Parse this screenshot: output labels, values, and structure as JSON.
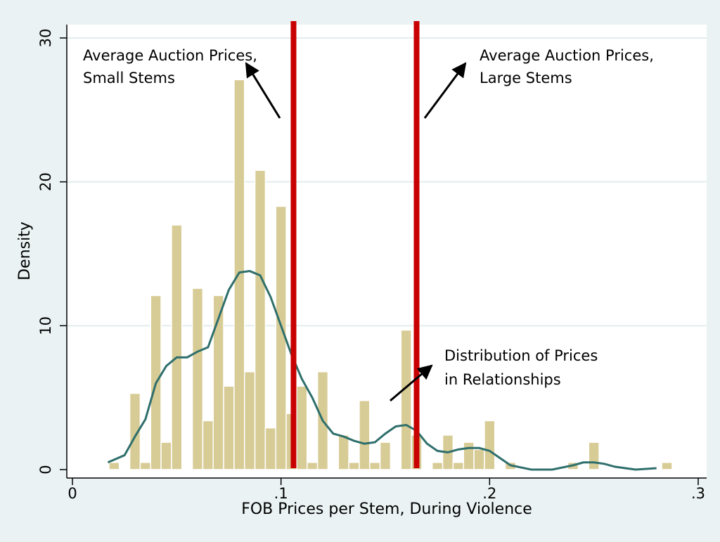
{
  "chart_data": {
    "type": "histogram",
    "xlabel": "FOB Prices per Stem, During Violence",
    "ylabel": "Density",
    "bins": [
      0.0175,
      0.0225,
      0.0275,
      0.0325,
      0.0375,
      0.0425,
      0.0475,
      0.0525,
      0.0575,
      0.0625,
      0.0675,
      0.0725,
      0.0775,
      0.0825,
      0.0875,
      0.0925,
      0.0975,
      0.1025,
      0.1075,
      0.1125,
      0.1175,
      0.1225,
      0.1275,
      0.1325,
      0.1375,
      0.1425,
      0.1475,
      0.1525,
      0.1575,
      0.1625,
      0.1675,
      0.1725,
      0.1775,
      0.1825,
      0.1875,
      0.1925,
      0.1975,
      0.2025,
      0.2075,
      0.2125,
      0.2175,
      0.2225,
      0.2275,
      0.2325,
      0.2375,
      0.2425,
      0.2475,
      0.2525,
      0.2575,
      0.2625,
      0.2675,
      0.2725,
      0.2775,
      0.2825,
      0.2875
    ],
    "values": [
      0.5,
      0,
      5.3,
      0.5,
      12.1,
      1.9,
      17,
      0,
      12.6,
      3.4,
      12.1,
      5.8,
      27.1,
      6.8,
      20.8,
      2.9,
      18.3,
      3.9,
      5.8,
      0.5,
      6.8,
      0,
      2.4,
      0.5,
      4.8,
      0.5,
      1.9,
      0,
      9.7,
      2.4,
      0,
      0.5,
      2.4,
      0.5,
      1.9,
      1.4,
      3.4,
      0,
      0.5,
      0,
      0,
      0,
      0,
      0,
      0.5,
      0,
      1.9,
      0,
      0,
      0,
      0,
      0,
      0,
      0.5
    ],
    "color": "#d8cc96",
    "density": {
      "color": "#2f6f6c",
      "x": [
        0.017,
        0.025,
        0.03,
        0.035,
        0.04,
        0.045,
        0.05,
        0.055,
        0.06,
        0.065,
        0.07,
        0.075,
        0.08,
        0.085,
        0.09,
        0.095,
        0.1,
        0.105,
        0.11,
        0.115,
        0.12,
        0.125,
        0.13,
        0.135,
        0.14,
        0.145,
        0.15,
        0.155,
        0.16,
        0.165,
        0.17,
        0.175,
        0.18,
        0.185,
        0.19,
        0.195,
        0.2,
        0.205,
        0.21,
        0.22,
        0.23,
        0.24,
        0.245,
        0.25,
        0.255,
        0.26,
        0.27,
        0.28
      ],
      "values": [
        0.5,
        1.0,
        2.3,
        3.5,
        6,
        7.2,
        7.8,
        7.8,
        8.2,
        8.5,
        10.5,
        12.5,
        13.7,
        13.8,
        13.5,
        12,
        10,
        8,
        6.3,
        5,
        3.4,
        2.5,
        2.3,
        2,
        1.8,
        1.9,
        2.5,
        3,
        3.1,
        2.7,
        1.8,
        1.3,
        1.2,
        1.4,
        1.5,
        1.5,
        1.3,
        0.8,
        0.3,
        0,
        0,
        0.3,
        0.5,
        0.5,
        0.4,
        0.2,
        0,
        0.1
      ]
    },
    "vlines": {
      "color": "#c80000",
      "x": [
        0.106,
        0.165
      ]
    },
    "annotations": [
      {
        "lines": [
          "Average Auction Prices,",
          "Small Stems"
        ]
      },
      {
        "lines": [
          "Average Auction Prices,",
          "Large Stems"
        ]
      },
      {
        "lines": [
          "Distribution of Prices",
          "in Relationships"
        ]
      }
    ],
    "xlim": [
      0,
      0.3
    ],
    "ylim": [
      0,
      30
    ],
    "xticks": [
      0,
      {
        "value": 0.1,
        "label": ".1"
      },
      {
        "value": 0.2,
        "label": ".2"
      },
      {
        "value": 0.3,
        "label": ".3"
      }
    ],
    "yticks": [
      0,
      10,
      20,
      30
    ],
    "grid": true
  }
}
